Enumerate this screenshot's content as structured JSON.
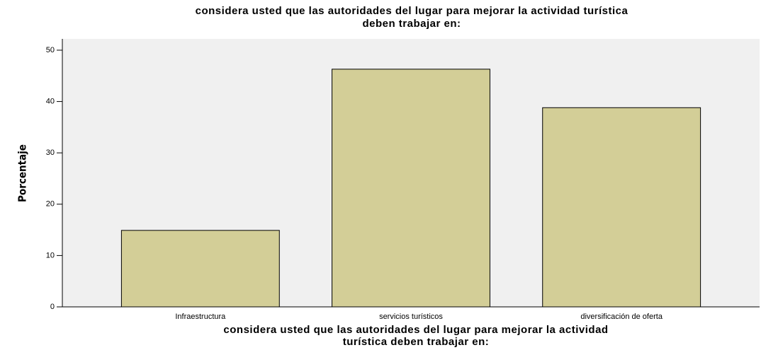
{
  "chart_data": {
    "type": "bar",
    "title": [
      "considera usted que las autoridades del lugar para mejorar la actividad turística",
      "deben trabajar en:"
    ],
    "x_label": [
      "considera usted que las autoridades del lugar para mejorar la actividad",
      "turística deben trabajar en:"
    ],
    "y_label": "Porcentaje",
    "categories": [
      "Infraestructura",
      "servicios turísticos",
      "diversificación de oferta"
    ],
    "values": [
      14.9,
      46.3,
      38.8
    ],
    "color": "#d3ce97",
    "ylim": [
      0,
      52.2
    ],
    "yticks": [
      0,
      10,
      20,
      30,
      40,
      50
    ],
    "grid": false
  }
}
